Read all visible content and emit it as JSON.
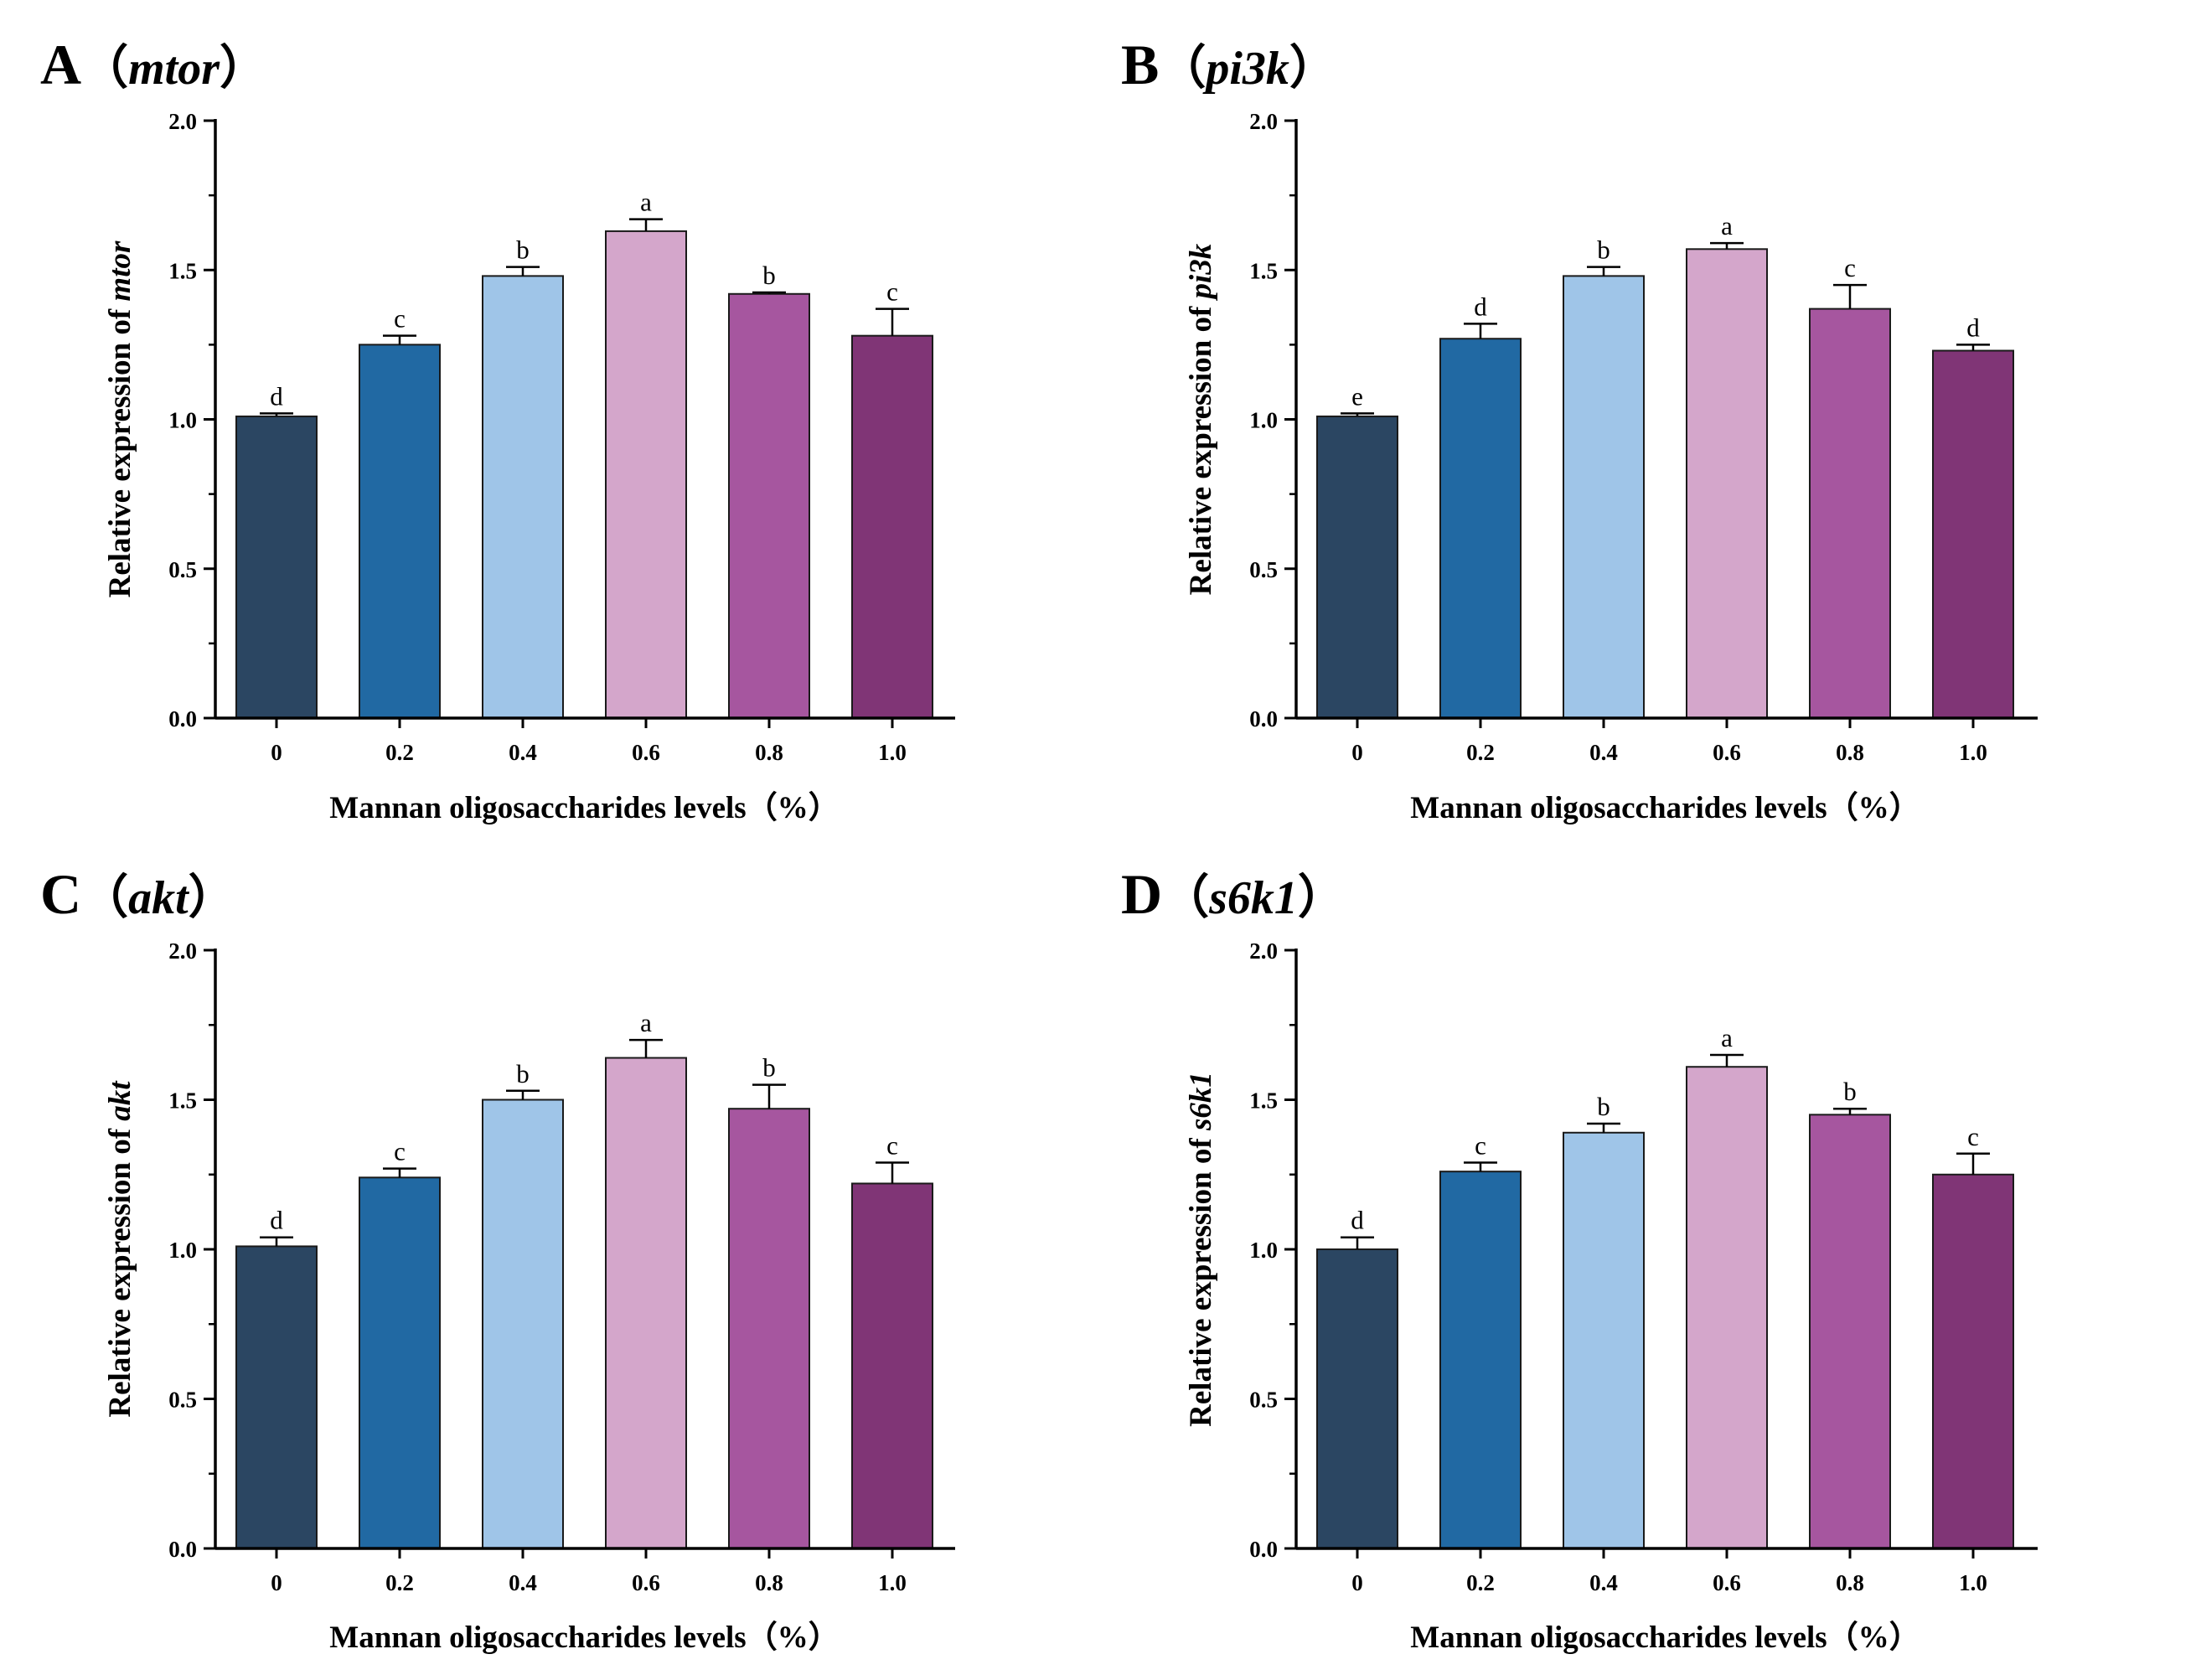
{
  "figure": {
    "x_title": "Mannan oligosaccharides levels",
    "x_title_unit": "（%）",
    "y_title_prefix": "Relative expression of"
  },
  "chart_data": [
    {
      "type": "bar",
      "panel": "A",
      "gene": "mtor",
      "title": "A（mtor）",
      "xlabel": "Mannan oligosaccharides levels（%）",
      "ylabel": "Relative expression of mtor",
      "categories": [
        "0",
        "0.2",
        "0.4",
        "0.6",
        "0.8",
        "1.0"
      ],
      "values": [
        1.01,
        1.25,
        1.48,
        1.63,
        1.42,
        1.28
      ],
      "errors": [
        0.01,
        0.03,
        0.03,
        0.04,
        0.005,
        0.09
      ],
      "significance": [
        "d",
        "c",
        "b",
        "a",
        "b",
        "c"
      ],
      "ylim": [
        0,
        2.0
      ],
      "yticks": [
        "0.0",
        "0.5",
        "1.0",
        "1.5",
        "2.0"
      ]
    },
    {
      "type": "bar",
      "panel": "B",
      "gene": "pi3k",
      "title": "B（pi3k）",
      "xlabel": "Mannan oligosaccharides levels（%）",
      "ylabel": "Relative expression of pi3k",
      "categories": [
        "0",
        "0.2",
        "0.4",
        "0.6",
        "0.8",
        "1.0"
      ],
      "values": [
        1.01,
        1.27,
        1.48,
        1.57,
        1.37,
        1.23
      ],
      "errors": [
        0.01,
        0.05,
        0.03,
        0.02,
        0.08,
        0.02
      ],
      "significance": [
        "e",
        "d",
        "b",
        "a",
        "c",
        "d"
      ],
      "ylim": [
        0,
        2.0
      ],
      "yticks": [
        "0.0",
        "0.5",
        "1.0",
        "1.5",
        "2.0"
      ]
    },
    {
      "type": "bar",
      "panel": "C",
      "gene": "akt",
      "title": "C（akt）",
      "xlabel": "Mannan oligosaccharides levels（%）",
      "ylabel": "Relative expression of akt",
      "categories": [
        "0",
        "0.2",
        "0.4",
        "0.6",
        "0.8",
        "1.0"
      ],
      "values": [
        1.01,
        1.24,
        1.5,
        1.64,
        1.47,
        1.22
      ],
      "errors": [
        0.03,
        0.03,
        0.03,
        0.06,
        0.08,
        0.07
      ],
      "significance": [
        "d",
        "c",
        "b",
        "a",
        "b",
        "c"
      ],
      "ylim": [
        0,
        2.0
      ],
      "yticks": [
        "0.0",
        "0.5",
        "1.0",
        "1.5",
        "2.0"
      ]
    },
    {
      "type": "bar",
      "panel": "D",
      "gene": "s6k1",
      "title": "D（s6k1）",
      "xlabel": "Mannan oligosaccharides levels（%）",
      "ylabel": "Relative expression of s6k1",
      "categories": [
        "0",
        "0.2",
        "0.4",
        "0.6",
        "0.8",
        "1.0"
      ],
      "values": [
        1.0,
        1.26,
        1.39,
        1.61,
        1.45,
        1.25
      ],
      "errors": [
        0.04,
        0.03,
        0.03,
        0.04,
        0.02,
        0.07
      ],
      "significance": [
        "d",
        "c",
        "b",
        "a",
        "b",
        "c"
      ],
      "ylim": [
        0,
        2.0
      ],
      "yticks": [
        "0.0",
        "0.5",
        "1.0",
        "1.5",
        "2.0"
      ]
    }
  ],
  "colors": {
    "bars": [
      "#2b4662",
      "#2169a3",
      "#9fc5e8",
      "#d4a6cb",
      "#a6569f",
      "#803576"
    ],
    "axis": "#000000"
  }
}
